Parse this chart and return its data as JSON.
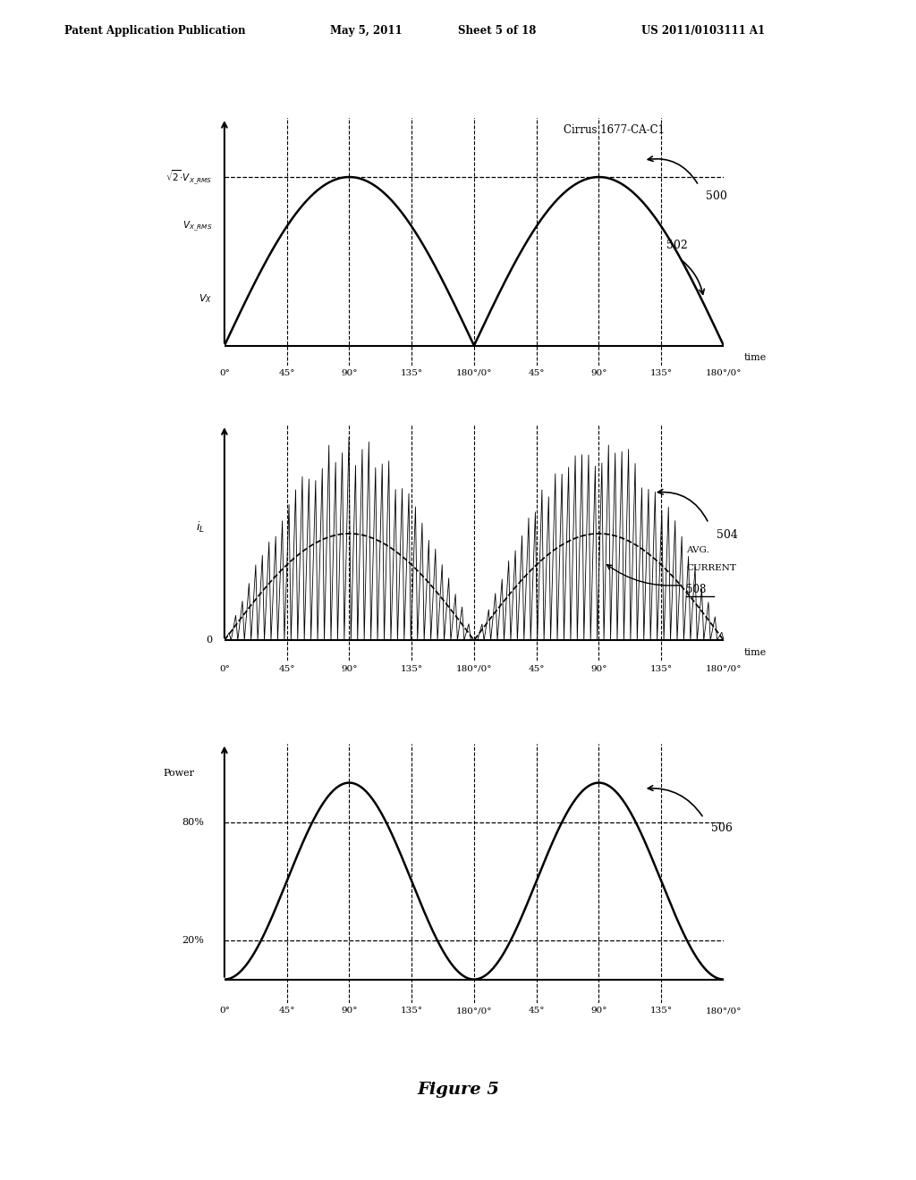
{
  "title_header": "Patent Application Publication",
  "date_header": "May 5, 2011",
  "sheet_header": "Sheet 5 of 18",
  "patent_header": "US 2011/0103111 A1",
  "cirrus_label": "Cirrus 1677-CA-C1",
  "figure_label": "Figure 5",
  "ref_500": "500",
  "ref_502": "502",
  "ref_504": "504",
  "ref_506": "506",
  "ref_508": "508",
  "bg_color": "#ffffff",
  "tick_labels": [
    "0°",
    "45°",
    "90°",
    "135°",
    "180°/0°",
    "45°",
    "90°",
    "135°",
    "180°/0°"
  ],
  "time_label": "time",
  "avg_current_label_line1": "AVG.",
  "avg_current_label_line2": "CURRENT"
}
